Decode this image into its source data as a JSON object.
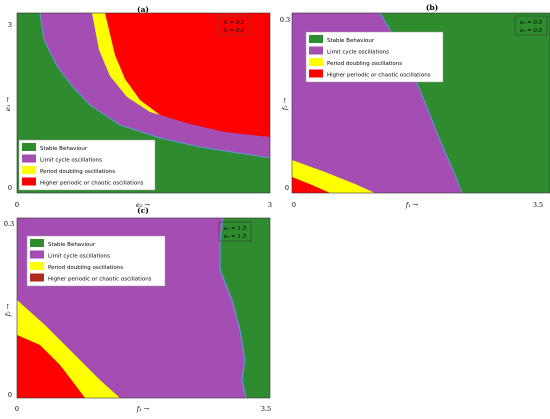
{
  "colors": {
    "stable": "#2e8b2e",
    "limit_cycle": "#a44db3",
    "period_doubling": "#ffff00",
    "chaotic": "#ff0000",
    "boundary": "#5b9bd5"
  },
  "legend_entries": [
    {
      "key": "stable",
      "label": "Stable Behaviour"
    },
    {
      "key": "limit_cycle",
      "label": "Limit cycle oscillations"
    },
    {
      "key": "period_doubling",
      "label": "Period doubling oscillations"
    },
    {
      "key": "chaotic",
      "label": "Higher periodic or chaotic oscillations"
    }
  ],
  "chart_data": [
    {
      "type": "heatmap",
      "panel_label": "(a)",
      "xlabel": "e₂ →",
      "ylabel": "e₁ →",
      "xlim": [
        0,
        3
      ],
      "ylim": [
        0,
        3
      ],
      "x_ticks": [
        "0",
        "3"
      ],
      "y_ticks": [
        "0",
        "3"
      ],
      "parameters": [
        "f₁ = 3.5",
        "f₂ = 0.1"
      ],
      "legend_position": "bottom-left",
      "regions": [
        {
          "key": "stable",
          "boundary_x": [
            0.0,
            0.3,
            0.6,
            1.0,
            1.5,
            2.0,
            2.5,
            3.0
          ],
          "boundary_y": [
            3.0,
            2.5,
            2.15,
            1.8,
            1.4,
            1.05,
            0.75,
            0.5
          ]
        },
        {
          "key": "limit_cycle",
          "boundary_x": [
            1.1,
            1.25,
            1.45,
            1.7,
            2.0,
            2.5,
            3.0
          ],
          "boundary_y": [
            3.0,
            2.4,
            2.0,
            1.7,
            1.45,
            1.2,
            1.0
          ]
        },
        {
          "key": "period_doubling",
          "boundary_x": [
            1.55,
            1.7,
            1.9,
            2.2,
            2.6,
            3.0
          ],
          "boundary_y": [
            3.0,
            2.45,
            2.05,
            1.75,
            1.5,
            1.3
          ]
        },
        {
          "key": "chaotic",
          "boundary_x": [],
          "boundary_y": []
        }
      ]
    },
    {
      "type": "heatmap",
      "panel_label": "(b)",
      "xlabel": "f₁ →",
      "ylabel": "f₂ →",
      "xlim": [
        0,
        3.5
      ],
      "ylim": [
        0,
        0.3
      ],
      "x_ticks": [
        "0",
        "3.5"
      ],
      "y_ticks": [
        "0",
        "0.3"
      ],
      "parameters": [
        "e₁ = 0.5",
        "e₂ = 0.5"
      ],
      "legend_position": "top-left",
      "regions": [
        {
          "key": "stable",
          "boundary_x": [
            1.0,
            1.6,
            2.1,
            2.5,
            2.75,
            2.85
          ],
          "boundary_y": [
            0.3,
            0.25,
            0.18,
            0.1,
            0.04,
            0.0
          ]
        },
        {
          "key": "limit_cycle",
          "boundary_x": [],
          "boundary_y": []
        },
        {
          "key": "period_doubling",
          "boundary_x": [
            0.0,
            0.5,
            0.9,
            1.2
          ],
          "boundary_y": [
            0.055,
            0.035,
            0.015,
            0.0
          ]
        },
        {
          "key": "chaotic",
          "boundary_x": [
            0.0,
            0.3,
            0.55
          ],
          "boundary_y": [
            0.025,
            0.013,
            0.0
          ]
        }
      ]
    },
    {
      "type": "heatmap",
      "panel_label": "(c)",
      "xlabel": "f₁ →",
      "ylabel": "f₂ →",
      "xlim": [
        0,
        3.5
      ],
      "ylim": [
        0,
        0.3
      ],
      "x_ticks": [
        "0",
        "3.5"
      ],
      "y_ticks": [
        "0",
        "0.3"
      ],
      "parameters": [
        "e₁ = 1.5",
        "e₂ = 1.5"
      ],
      "legend_position": "top-left",
      "regions": [
        {
          "key": "stable",
          "boundary_x": [
            2.85,
            2.8,
            2.8,
            2.95,
            3.1,
            3.05,
            3.1
          ],
          "boundary_y": [
            0.3,
            0.27,
            0.2,
            0.15,
            0.08,
            0.03,
            0.0
          ]
        },
        {
          "key": "limit_cycle",
          "boundary_x": [],
          "boundary_y": []
        },
        {
          "key": "period_doubling",
          "boundary_x": [
            0.0,
            0.5,
            0.95,
            1.35,
            1.55
          ],
          "boundary_y": [
            0.165,
            0.11,
            0.07,
            0.03,
            0.0
          ]
        },
        {
          "key": "chaotic",
          "boundary_x": [
            0.0,
            0.35,
            0.7,
            0.9,
            1.05
          ],
          "boundary_y": [
            0.105,
            0.075,
            0.04,
            0.02,
            0.0
          ]
        }
      ]
    }
  ]
}
